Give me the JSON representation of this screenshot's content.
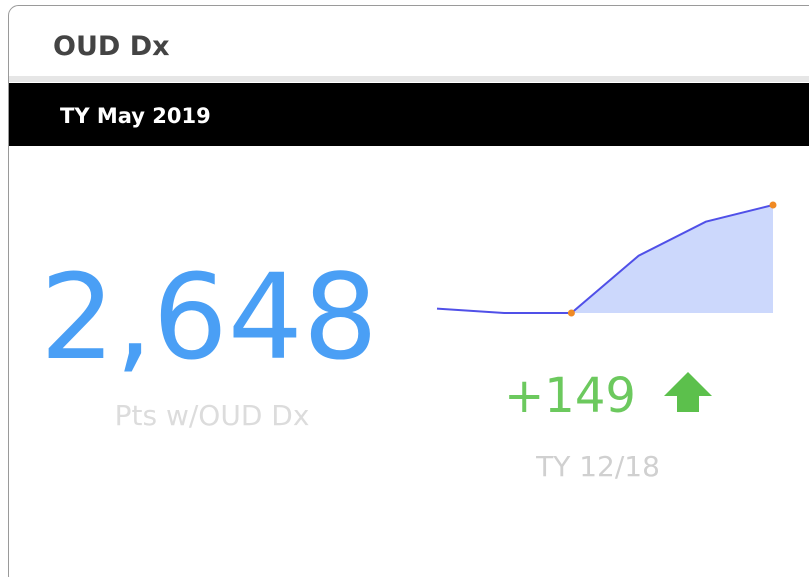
{
  "header": {
    "title": "OUD Dx"
  },
  "period": {
    "label": "TY May 2019"
  },
  "kpi": {
    "value": "2,648",
    "label": "Pts w/OUD Dx"
  },
  "change": {
    "value": "+149",
    "label": "TY 12/18"
  },
  "chart_data": {
    "type": "area",
    "values": [
      2505,
      2499,
      2499,
      2578,
      2625,
      2648
    ],
    "color": "#5050e8",
    "area_color": "#ccd8fc",
    "marker_color": "#f08a24"
  }
}
